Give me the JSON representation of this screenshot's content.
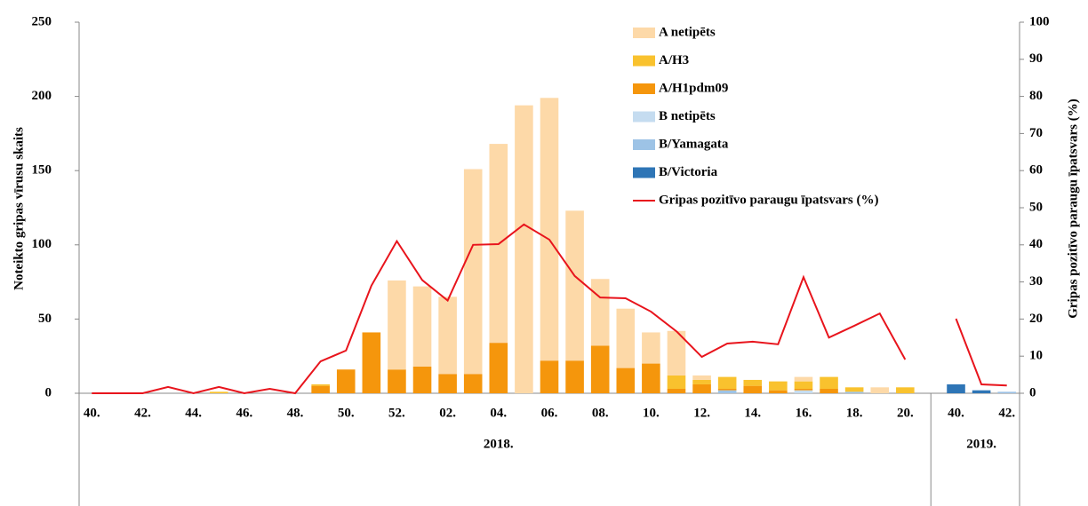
{
  "chart_data": {
    "type": "bar",
    "stacked": true,
    "categories": [
      "40.",
      null,
      "42.",
      null,
      "44.",
      null,
      "46.",
      null,
      "48.",
      null,
      "50.",
      null,
      "52.",
      null,
      "02.",
      null,
      "04.",
      null,
      "06.",
      null,
      "08.",
      null,
      "10.",
      null,
      "12.",
      null,
      "14.",
      null,
      "16.",
      null,
      "18.",
      null,
      "20.",
      null,
      "40.",
      null,
      "42."
    ],
    "x_groups": [
      "2018.",
      "2019."
    ],
    "ylabel": "Noteikto gripas vīrusu skaits",
    "y2label": "Gripas pozitīvo paraugu īpatsvars (%)",
    "ylim": [
      0,
      250
    ],
    "yticks": [
      0,
      50,
      100,
      150,
      200,
      250
    ],
    "y2lim": [
      0,
      100
    ],
    "y2ticks": [
      0,
      10,
      20,
      30,
      40,
      50,
      60,
      70,
      80,
      90,
      100
    ],
    "series": [
      {
        "name": "A netipēts",
        "color": "#fdd9a8",
        "values": [
          0,
          0,
          0,
          0,
          0,
          0,
          0,
          0,
          0,
          0,
          0,
          0,
          60,
          54,
          52,
          138,
          134,
          194,
          177,
          101,
          45,
          40,
          21,
          30,
          3,
          0,
          0,
          0,
          3,
          0,
          0,
          4,
          0,
          null,
          0,
          0,
          0
        ]
      },
      {
        "name": "A/H3",
        "color": "#f9c22e",
        "values": [
          0,
          0,
          0,
          0,
          0,
          1,
          0,
          0,
          0,
          1,
          0,
          0,
          0,
          0,
          0,
          0,
          0,
          0,
          0,
          0,
          0,
          0,
          0,
          9,
          3,
          8,
          4,
          6,
          5,
          8,
          3,
          0,
          4,
          null,
          0,
          0,
          0
        ]
      },
      {
        "name": "A/H1pdm09",
        "color": "#f5960c",
        "values": [
          0,
          0,
          0,
          0,
          0,
          0,
          0,
          0,
          0,
          5,
          16,
          41,
          16,
          18,
          13,
          13,
          34,
          0,
          22,
          22,
          32,
          17,
          20,
          3,
          6,
          1,
          5,
          2,
          1,
          3,
          0,
          0,
          0,
          null,
          0,
          0,
          0
        ]
      },
      {
        "name": "B netipēts",
        "color": "#c5dcf0",
        "values": [
          0,
          0,
          0,
          0,
          0,
          0,
          0,
          0,
          0,
          0,
          0,
          0,
          0,
          0,
          0,
          0,
          0,
          0,
          0,
          0,
          0,
          0,
          0,
          0,
          0,
          0,
          0,
          0,
          2,
          0,
          0,
          0,
          0,
          null,
          0,
          0,
          0
        ]
      },
      {
        "name": "B/Yamagata",
        "color": "#9dc3e6",
        "values": [
          0,
          0,
          0,
          0,
          0,
          0,
          0,
          0,
          0,
          0,
          0,
          0,
          0,
          0,
          0,
          0,
          0,
          0,
          0,
          0,
          0,
          0,
          0,
          0,
          0,
          2,
          0,
          0,
          0,
          0,
          1,
          0,
          0,
          null,
          0,
          0,
          1
        ]
      },
      {
        "name": "B/Victoria",
        "color": "#2e75b6",
        "values": [
          0,
          0,
          0,
          0,
          0,
          0,
          0,
          0,
          0,
          0,
          0,
          0,
          0,
          0,
          0,
          0,
          0,
          0,
          0,
          0,
          0,
          0,
          0,
          0,
          0,
          0,
          0,
          0,
          0,
          0,
          0,
          0,
          0,
          null,
          6,
          2,
          0
        ]
      },
      {
        "name": "Gripas pozitīvo paraugu īpatsvars (%)",
        "type": "line",
        "axis": "y2",
        "color": "#e8141c",
        "values": [
          0,
          0,
          0,
          1.7,
          0,
          1.7,
          0,
          1.2,
          0,
          8.6,
          11.5,
          29,
          41,
          30.5,
          25,
          40,
          40.2,
          45.5,
          41.4,
          31.6,
          25.8,
          25.6,
          22,
          16.7,
          9.8,
          13.4,
          13.9,
          13.2,
          31.3,
          15,
          18.2,
          21.5,
          9.1,
          null,
          20.1,
          2.4,
          2.1
        ]
      }
    ]
  }
}
